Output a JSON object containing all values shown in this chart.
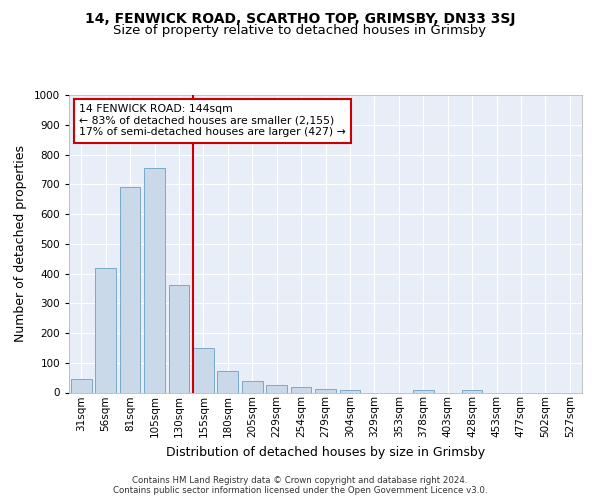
{
  "title1": "14, FENWICK ROAD, SCARTHO TOP, GRIMSBY, DN33 3SJ",
  "title2": "Size of property relative to detached houses in Grimsby",
  "xlabel": "Distribution of detached houses by size in Grimsby",
  "ylabel": "Number of detached properties",
  "categories": [
    "31sqm",
    "56sqm",
    "81sqm",
    "105sqm",
    "130sqm",
    "155sqm",
    "180sqm",
    "205sqm",
    "229sqm",
    "254sqm",
    "279sqm",
    "304sqm",
    "329sqm",
    "353sqm",
    "378sqm",
    "403sqm",
    "428sqm",
    "453sqm",
    "477sqm",
    "502sqm",
    "527sqm"
  ],
  "values": [
    45,
    420,
    690,
    755,
    360,
    150,
    72,
    38,
    25,
    18,
    12,
    8,
    0,
    0,
    8,
    0,
    8,
    0,
    0,
    0,
    0
  ],
  "bar_color": "#c9d9ea",
  "bar_edge_color": "#7aaac8",
  "vline_x_index": 4.58,
  "vline_color": "#cc0000",
  "annotation_line1": "14 FENWICK ROAD: 144sqm",
  "annotation_line2": "← 83% of detached houses are smaller (2,155)",
  "annotation_line3": "17% of semi-detached houses are larger (427) →",
  "annotation_box_color": "#ffffff",
  "annotation_box_edge": "#cc0000",
  "ylim": [
    0,
    1000
  ],
  "yticks": [
    0,
    100,
    200,
    300,
    400,
    500,
    600,
    700,
    800,
    900,
    1000
  ],
  "fig_bg_color": "#ffffff",
  "plot_bg_color": "#e8eef8",
  "grid_color": "#ffffff",
  "footer1": "Contains HM Land Registry data © Crown copyright and database right 2024.",
  "footer2": "Contains public sector information licensed under the Open Government Licence v3.0.",
  "title1_fontsize": 10,
  "title2_fontsize": 9.5,
  "xlabel_fontsize": 9,
  "ylabel_fontsize": 9,
  "tick_fontsize": 7.5,
  "annotation_fontsize": 7.8,
  "footer_fontsize": 6.2
}
